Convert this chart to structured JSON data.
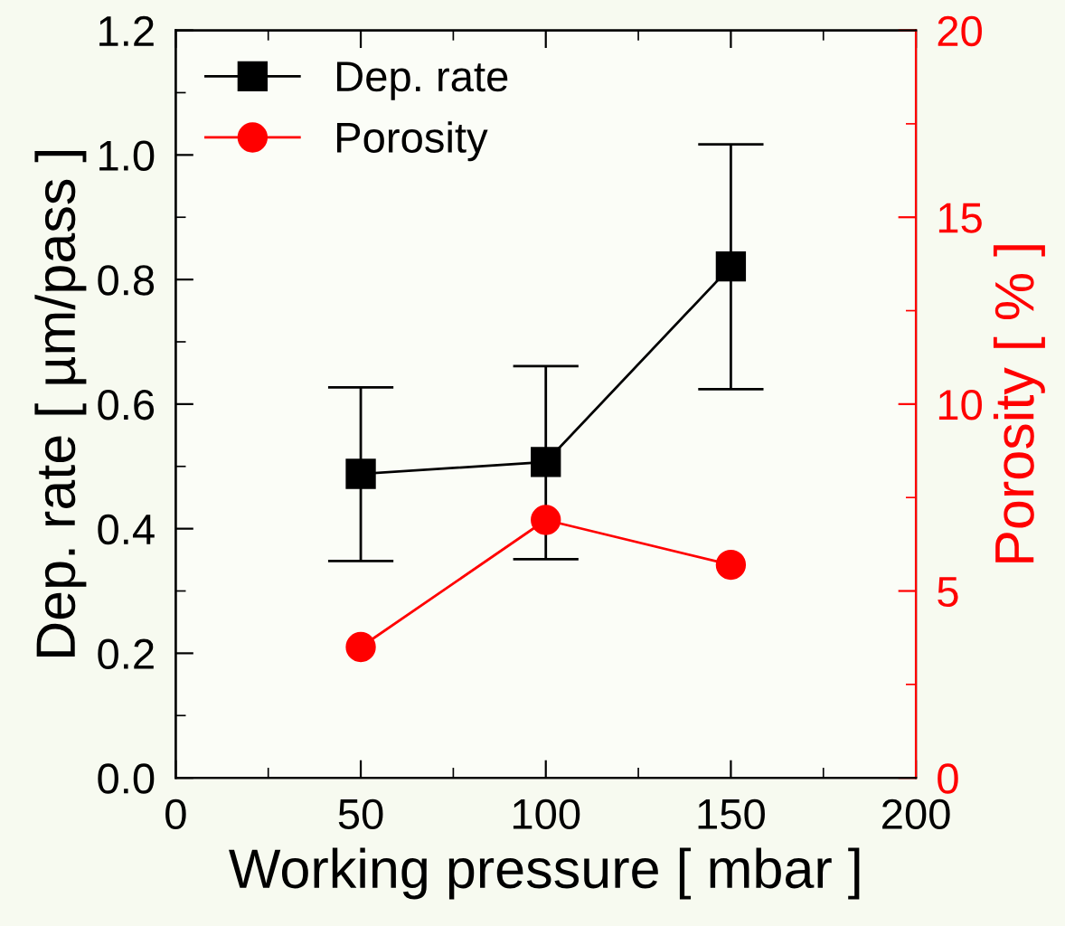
{
  "chart_data": {
    "type": "line",
    "xlabel": "Working pressure [ mbar ]",
    "ylabel": "Dep. rate [ µm/pass ]",
    "y2label": "Porosity [ % ]",
    "x": [
      50,
      100,
      150
    ],
    "series": [
      {
        "name": "Dep. rate",
        "color": "#000000",
        "marker": "square",
        "values": [
          0.488,
          0.507,
          0.821
        ],
        "errors": [
          [
            0.348,
            0.627
          ],
          [
            0.351,
            0.661
          ],
          [
            0.624,
            1.017
          ]
        ]
      },
      {
        "name": "Porosity",
        "color": "#ff0000",
        "marker": "circle",
        "axis": "y2",
        "values": [
          3.5,
          6.9,
          5.7
        ]
      }
    ],
    "xlim": [
      0,
      200
    ],
    "xticks": [
      0,
      50,
      100,
      150,
      200
    ],
    "ylim": [
      0,
      1.2
    ],
    "yticks": [
      {
        "value": 0,
        "label": "0.0"
      },
      {
        "value": 0.2,
        "label": "0.2"
      },
      {
        "value": 0.4,
        "label": "0.4"
      },
      {
        "value": 0.6,
        "label": "0.6"
      },
      {
        "value": 0.8,
        "label": "0.8"
      },
      {
        "value": 1,
        "label": "1.0"
      },
      {
        "value": 1.2,
        "label": "1.2"
      }
    ],
    "y2lim": [
      0,
      20
    ],
    "y2ticks": [
      0,
      5,
      10,
      15,
      20
    ],
    "legend": "top left",
    "grid": false,
    "line_style": "solid"
  }
}
